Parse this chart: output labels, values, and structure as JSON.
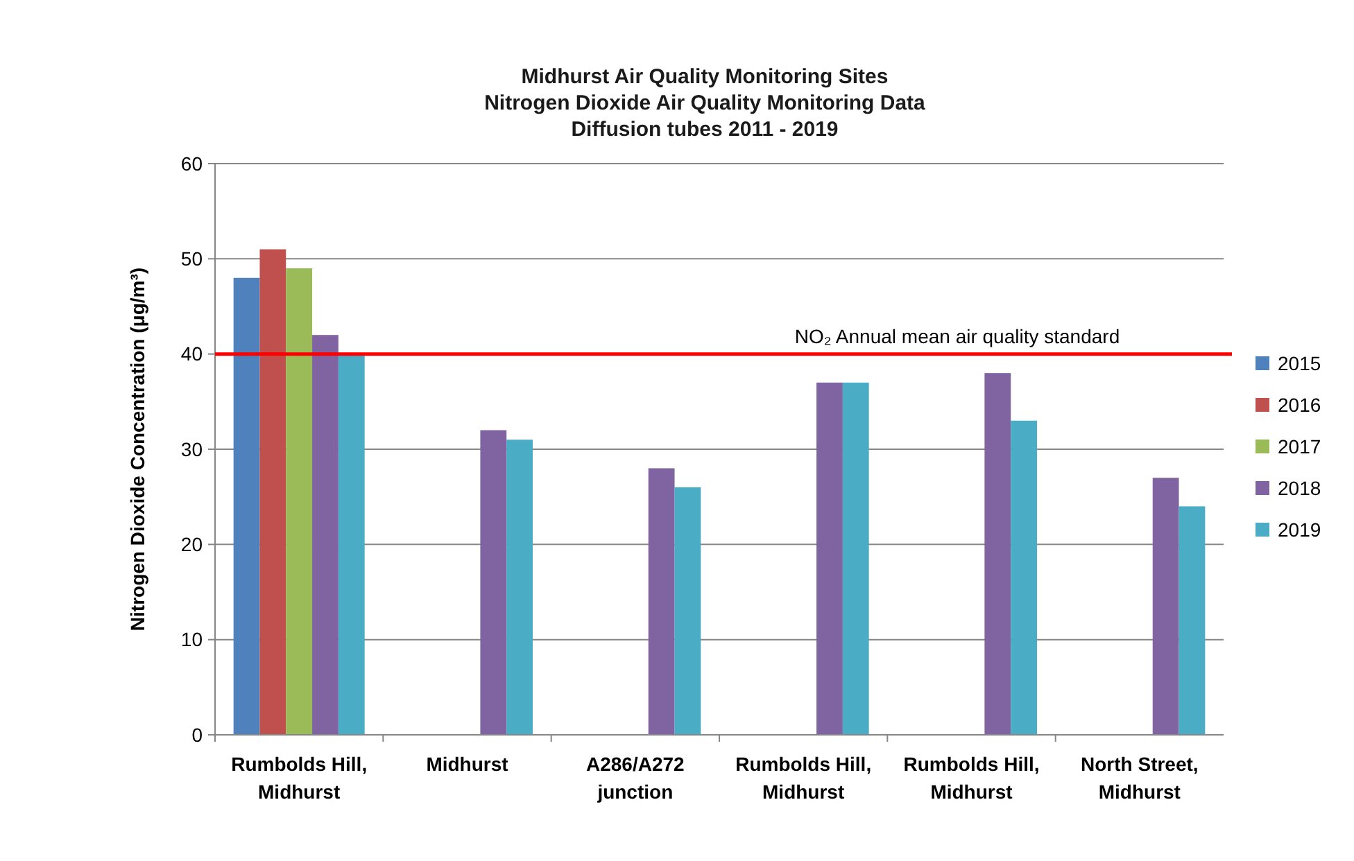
{
  "chart_data": {
    "type": "bar",
    "title": "Midhurst Air Quality Monitoring Sites\nNitrogen Dioxide Air Quality  Monitoring Data\nDiffusion tubes 2011 - 2019",
    "ylabel": "Nitrogen Dioxide Concentration (μg/m³)",
    "categories": [
      "Rumbolds Hill, Midhurst",
      "Midhurst",
      "A286/A272 junction",
      "Rumbolds Hill, Midhurst",
      "Rumbolds Hill, Midhurst",
      "North Street, Midhurst"
    ],
    "series": [
      {
        "name": "2015",
        "color": "#4f81bd",
        "values": [
          48,
          null,
          null,
          null,
          null,
          null
        ]
      },
      {
        "name": "2016",
        "color": "#c0504d",
        "values": [
          51,
          null,
          null,
          null,
          null,
          null
        ]
      },
      {
        "name": "2017",
        "color": "#9bbb59",
        "values": [
          49,
          null,
          null,
          null,
          null,
          null
        ]
      },
      {
        "name": "2018",
        "color": "#8064a2",
        "values": [
          42,
          32,
          28,
          37,
          38,
          27
        ]
      },
      {
        "name": "2019",
        "color": "#4bacc6",
        "values": [
          40,
          31,
          26,
          37,
          33,
          24
        ]
      }
    ],
    "ylim": [
      0,
      60
    ],
    "yticks": [
      0,
      10,
      20,
      30,
      40,
      50,
      60
    ],
    "grid": "y",
    "legend": "right",
    "ref_lines": [
      {
        "axis": "y",
        "value": 40,
        "label": "NO₂ Annual mean air quality standard",
        "color": "#ff0000"
      }
    ]
  }
}
